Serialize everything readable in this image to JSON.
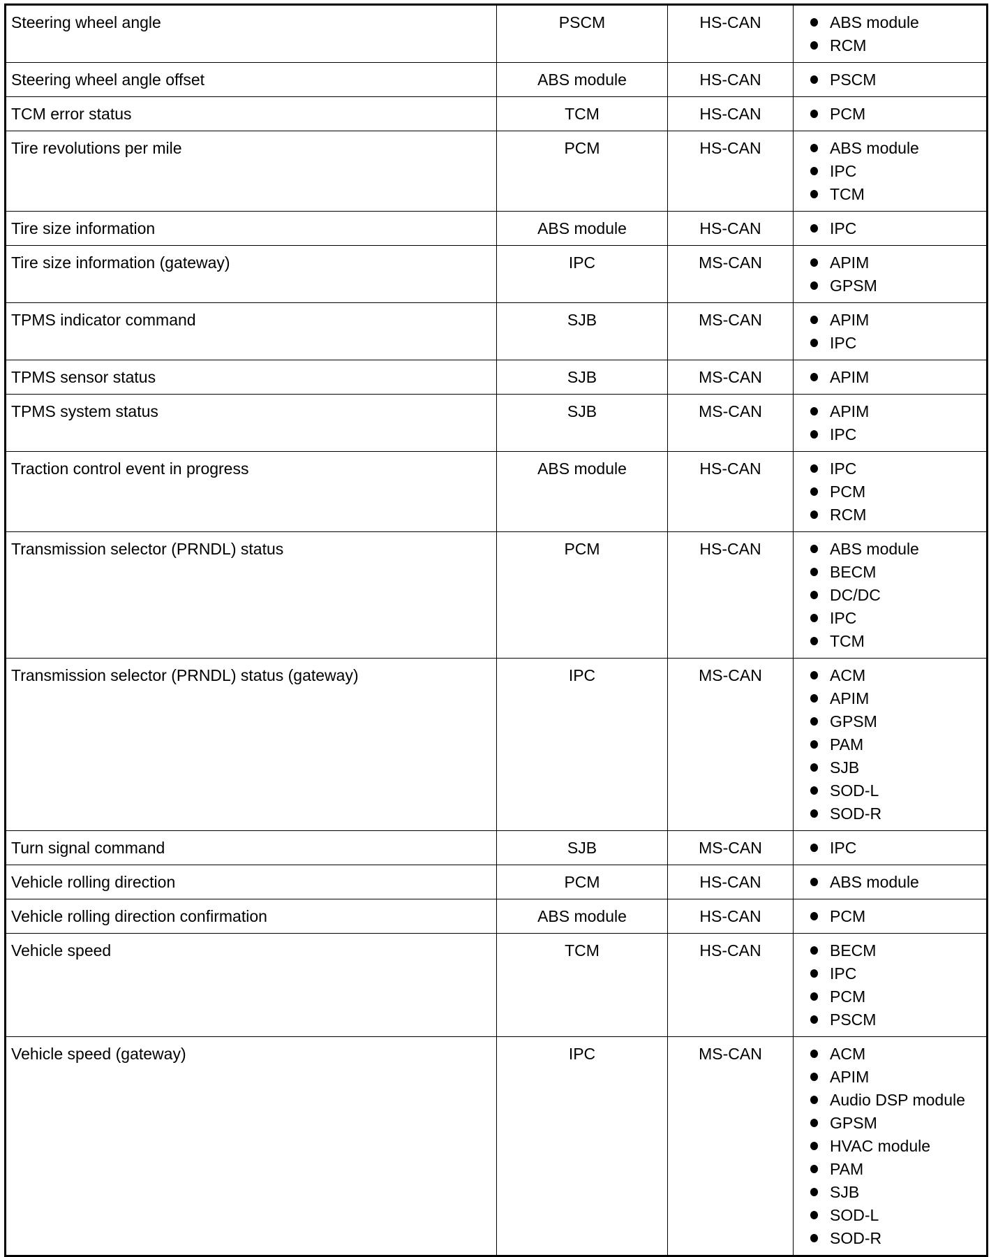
{
  "rows": [
    {
      "message": "Steering wheel angle",
      "originator": "PSCM",
      "network": "HS-CAN",
      "receivers": [
        "ABS module",
        "RCM"
      ]
    },
    {
      "message": "Steering wheel angle offset",
      "originator": "ABS module",
      "network": "HS-CAN",
      "receivers": [
        "PSCM"
      ]
    },
    {
      "message": "TCM error status",
      "originator": "TCM",
      "network": "HS-CAN",
      "receivers": [
        "PCM"
      ]
    },
    {
      "message": "Tire revolutions per mile",
      "originator": "PCM",
      "network": "HS-CAN",
      "receivers": [
        "ABS module",
        "IPC",
        "TCM"
      ]
    },
    {
      "message": "Tire size information",
      "originator": "ABS module",
      "network": "HS-CAN",
      "receivers": [
        "IPC"
      ]
    },
    {
      "message": "Tire size information (gateway)",
      "originator": "IPC",
      "network": "MS-CAN",
      "receivers": [
        "APIM",
        "GPSM"
      ]
    },
    {
      "message": "TPMS indicator command",
      "originator": "SJB",
      "network": "MS-CAN",
      "receivers": [
        "APIM",
        "IPC"
      ]
    },
    {
      "message": "TPMS sensor status",
      "originator": "SJB",
      "network": "MS-CAN",
      "receivers": [
        "APIM"
      ]
    },
    {
      "message": "TPMS system status",
      "originator": "SJB",
      "network": "MS-CAN",
      "receivers": [
        "APIM",
        "IPC"
      ]
    },
    {
      "message": "Traction control event in progress",
      "originator": "ABS module",
      "network": "HS-CAN",
      "receivers": [
        "IPC",
        "PCM",
        "RCM"
      ]
    },
    {
      "message": "Transmission selector (PRNDL) status",
      "originator": "PCM",
      "network": "HS-CAN",
      "receivers": [
        "ABS module",
        "BECM",
        "DC/DC",
        "IPC",
        "TCM"
      ]
    },
    {
      "message": "Transmission selector (PRNDL) status (gateway)",
      "originator": "IPC",
      "network": "MS-CAN",
      "receivers": [
        "ACM",
        "APIM",
        "GPSM",
        "PAM",
        "SJB",
        "SOD-L",
        "SOD-R"
      ]
    },
    {
      "message": "Turn signal command",
      "originator": "SJB",
      "network": "MS-CAN",
      "receivers": [
        "IPC"
      ]
    },
    {
      "message": "Vehicle rolling direction",
      "originator": "PCM",
      "network": "HS-CAN",
      "receivers": [
        "ABS module"
      ]
    },
    {
      "message": "Vehicle rolling direction confirmation",
      "originator": "ABS module",
      "network": "HS-CAN",
      "receivers": [
        "PCM"
      ]
    },
    {
      "message": "Vehicle speed",
      "originator": "TCM",
      "network": "HS-CAN",
      "receivers": [
        "BECM",
        "IPC",
        "PCM",
        "PSCM"
      ]
    },
    {
      "message": "Vehicle speed (gateway)",
      "originator": "IPC",
      "network": "MS-CAN",
      "receivers": [
        "ACM",
        "APIM",
        "Audio DSP module",
        "GPSM",
        "HVAC module",
        "PAM",
        "SJB",
        "SOD-L",
        "SOD-R"
      ]
    }
  ]
}
